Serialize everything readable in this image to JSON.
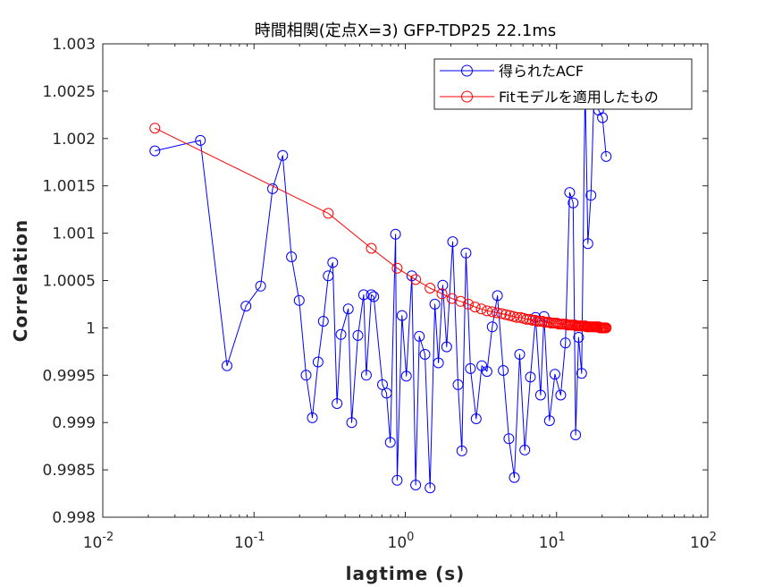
{
  "chart_data": {
    "type": "line",
    "title": "時間相関(定点X=3) GFP-TDP25 22.1ms",
    "xlabel": "lagtime (s)",
    "ylabel": "Correlation",
    "xscale": "log",
    "xlim": [
      0.01,
      100
    ],
    "ylim": [
      0.998,
      1.003
    ],
    "xtick_labels": [
      {
        "base": "10",
        "exp": "-2"
      },
      {
        "base": "10",
        "exp": "-1"
      },
      {
        "base": "10",
        "exp": "0"
      },
      {
        "base": "10",
        "exp": "1"
      },
      {
        "base": "10",
        "exp": "2"
      }
    ],
    "ytick_labels": [
      "0.998",
      "0.9985",
      "0.999",
      "0.9995",
      "1",
      "1.0005",
      "1.001",
      "1.0015",
      "1.002",
      "1.0025",
      "1.003"
    ],
    "legend_position": "top-right",
    "grid": false,
    "series": [
      {
        "name": "得られたACF",
        "color": "#0000ff",
        "marker": "circle",
        "x": [
          0.0221,
          0.0442,
          0.0663,
          0.0884,
          0.1105,
          0.1326,
          0.1547,
          0.1768,
          0.1989,
          0.221,
          0.2431,
          0.2652,
          0.2873,
          0.3094,
          0.3315,
          0.3536,
          0.3757,
          0.4199,
          0.442,
          0.4862,
          0.5304,
          0.5525,
          0.5967,
          0.6188,
          0.7072,
          0.7514,
          0.7956,
          0.8619,
          0.884,
          0.9503,
          1.0166,
          1.105,
          1.1713,
          1.2376,
          1.3481,
          1.4586,
          1.5691,
          1.6575,
          1.768,
          1.8785,
          2.0553,
          2.2321,
          2.3647,
          2.5194,
          2.6962,
          2.9393,
          3.2045,
          3.4697,
          3.757,
          4.0664,
          4.4421,
          4.8399,
          5.2598,
          5.7018,
          6.1659,
          6.7184,
          7.2709,
          7.8455,
          8.2654,
          8.9726,
          9.7461,
          10.6522,
          11.4478,
          12.2034,
          12.8622,
          13.3705,
          13.9895,
          14.6528,
          15.4479,
          16.1105,
          16.8798,
          17.8103,
          18.9652,
          20.1223,
          21.2793
        ],
        "y": [
          1.00187,
          1.00198,
          0.9996,
          1.00023,
          1.00044,
          1.00147,
          1.00182,
          1.00075,
          1.00029,
          0.9995,
          0.99905,
          0.99964,
          1.00007,
          1.00055,
          1.00069,
          0.9992,
          0.99993,
          1.0002,
          0.999,
          0.99992,
          1.00035,
          0.9995,
          1.00035,
          1.00033,
          0.9994,
          0.99931,
          0.99879,
          1.00099,
          0.99839,
          1.00013,
          0.99949,
          1.00055,
          0.99834,
          0.99991,
          0.99972,
          0.99831,
          1.00025,
          0.99963,
          1.00045,
          0.9998,
          1.00091,
          0.9994,
          0.9987,
          1.00079,
          0.99957,
          0.99904,
          0.9996,
          0.99954,
          1.00001,
          1.00034,
          0.99955,
          0.99883,
          0.99842,
          0.99972,
          0.99871,
          0.99948,
          1.00011,
          0.99929,
          1.00012,
          0.99902,
          0.99951,
          0.99929,
          0.99984,
          1.00143,
          1.00132,
          0.99887,
          0.9999,
          0.99952,
          1.00258,
          1.00089,
          1.0014,
          1.00262,
          1.0023,
          1.00222,
          1.00181
        ]
      },
      {
        "name": "Fitモデルを適用したもの",
        "color": "#ff0000",
        "marker": "circle",
        "x_start": 0.0221,
        "x_step": 0.0221,
        "x_count": 75,
        "x_spacing": "every 13th of 960 uniform lags, ending at 21.2793 s",
        "y": [
          1.00211,
          1.00121,
          1.00084,
          1.00063,
          1.00051,
          1.00042,
          1.00036,
          1.00031,
          1.00028,
          1.00025,
          1.00022,
          1.0002,
          1.00018,
          1.00017,
          1.00016,
          1.00015,
          1.00014,
          1.00013,
          1.00012,
          1.00011,
          1.00011,
          1.0001,
          1.00009,
          1.00009,
          1.00008,
          1.00008,
          1.00007,
          1.00007,
          1.00007,
          1.00006,
          1.00006,
          1.00006,
          1.00005,
          1.00005,
          1.00005,
          1.00005,
          1.00004,
          1.00004,
          1.00004,
          1.00004,
          1.00004,
          1.00003,
          1.00003,
          1.00003,
          1.00003,
          1.00003,
          1.00003,
          1.00002,
          1.00002,
          1.00002,
          1.00002,
          1.00002,
          1.00002,
          1.00002,
          1.00002,
          1.00001,
          1.00001,
          1.00001,
          1.00001,
          1.00001,
          1.00001,
          1.00001,
          1.00001,
          1.00001,
          1.00001,
          1.00001,
          1.00001,
          1.0,
          1.0,
          1.0,
          1.0,
          1.0,
          1.0,
          1.0,
          1.0
        ]
      }
    ]
  }
}
